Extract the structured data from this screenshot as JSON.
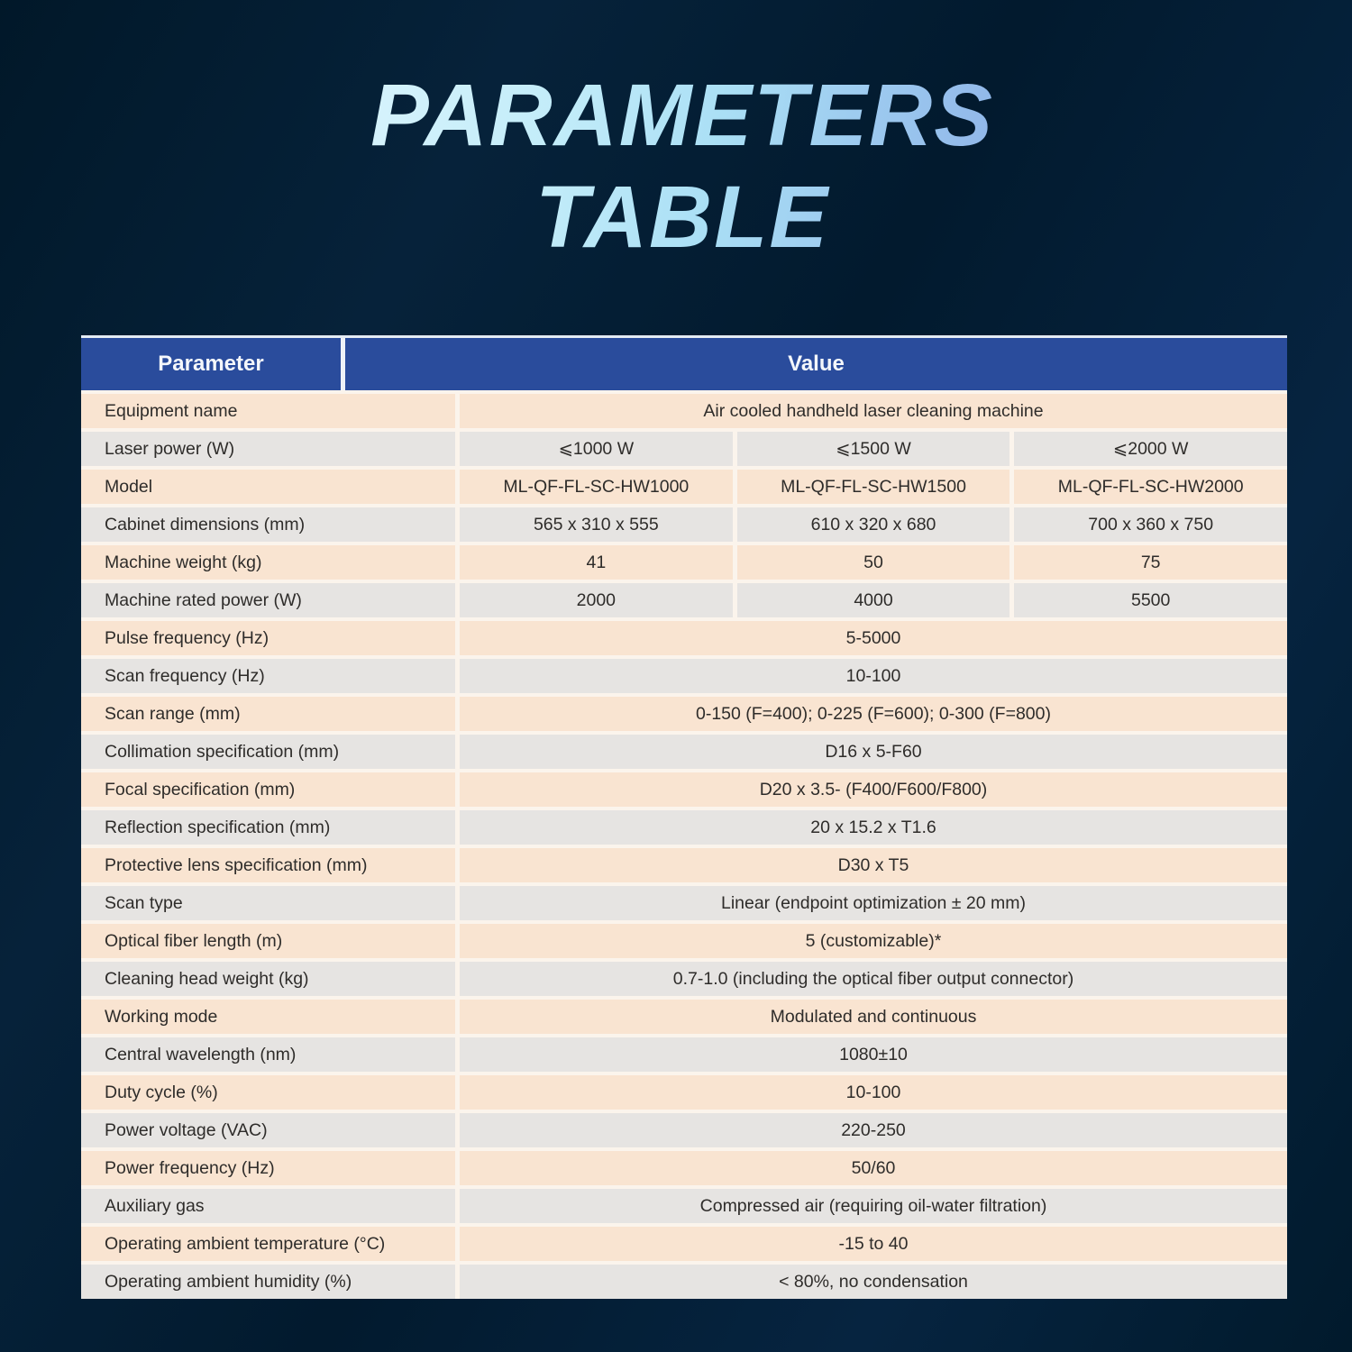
{
  "title": {
    "line1": "PARAMETERS",
    "line2": "TABLE",
    "gradient_start": "#d6f3fc",
    "gradient_end": "#8fb4e8"
  },
  "colors": {
    "background": "#021a2e",
    "header_bg": "#2a4c9c",
    "header_text": "#f4f7fb",
    "row_peach": "#f9e4d1",
    "row_gray": "#e6e4e2",
    "gap": "#fbf4ec",
    "cell_text": "#2e2c2a"
  },
  "table": {
    "header": {
      "parameter": "Parameter",
      "value": "Value"
    },
    "rows": [
      {
        "param": "Equipment name",
        "values": [
          "Air cooled handheld laser cleaning machine"
        ]
      },
      {
        "param": "Laser power (W)",
        "values": [
          "⩽1000 W",
          "⩽1500 W",
          "⩽2000 W"
        ]
      },
      {
        "param": "Model",
        "values": [
          "ML-QF-FL-SC-HW1000",
          "ML-QF-FL-SC-HW1500",
          "ML-QF-FL-SC-HW2000"
        ]
      },
      {
        "param": "Cabinet dimensions (mm)",
        "values": [
          "565 x 310 x 555",
          "610 x 320 x 680",
          "700 x 360 x 750"
        ]
      },
      {
        "param": "Machine weight (kg)",
        "values": [
          "41",
          "50",
          "75"
        ]
      },
      {
        "param": "Machine rated power (W)",
        "values": [
          "2000",
          "4000",
          "5500"
        ]
      },
      {
        "param": "Pulse frequency (Hz)",
        "values": [
          "5-5000"
        ]
      },
      {
        "param": "Scan frequency (Hz)",
        "values": [
          "10-100"
        ]
      },
      {
        "param": "Scan range (mm)",
        "values": [
          "0-150 (F=400); 0-225 (F=600); 0-300 (F=800)"
        ]
      },
      {
        "param": "Collimation specification (mm)",
        "values": [
          "D16 x 5-F60"
        ]
      },
      {
        "param": "Focal specification (mm)",
        "values": [
          "D20 x 3.5- (F400/F600/F800)"
        ]
      },
      {
        "param": "Reflection specification (mm)",
        "values": [
          "20 x 15.2 x T1.6"
        ]
      },
      {
        "param": "Protective lens specification (mm)",
        "values": [
          "D30 x T5"
        ]
      },
      {
        "param": "Scan type",
        "values": [
          "Linear (endpoint optimization ± 20 mm)"
        ]
      },
      {
        "param": "Optical fiber length (m)",
        "values": [
          "5 (customizable)*"
        ]
      },
      {
        "param": "Cleaning head weight (kg)",
        "values": [
          "0.7-1.0 (including the optical fiber output connector)"
        ]
      },
      {
        "param": "Working mode",
        "values": [
          "Modulated and continuous"
        ]
      },
      {
        "param": "Central wavelength (nm)",
        "values": [
          "1080±10"
        ]
      },
      {
        "param": "Duty cycle (%)",
        "values": [
          "10-100"
        ]
      },
      {
        "param": "Power voltage (VAC)",
        "values": [
          "220-250"
        ]
      },
      {
        "param": "Power frequency (Hz)",
        "values": [
          "50/60"
        ]
      },
      {
        "param": "Auxiliary gas",
        "values": [
          "Compressed air (requiring oil-water filtration)"
        ]
      },
      {
        "param": "Operating ambient temperature (°C)",
        "values": [
          "-15 to 40"
        ]
      },
      {
        "param": "Operating ambient humidity (%)",
        "values": [
          "< 80%, no condensation"
        ]
      }
    ]
  }
}
